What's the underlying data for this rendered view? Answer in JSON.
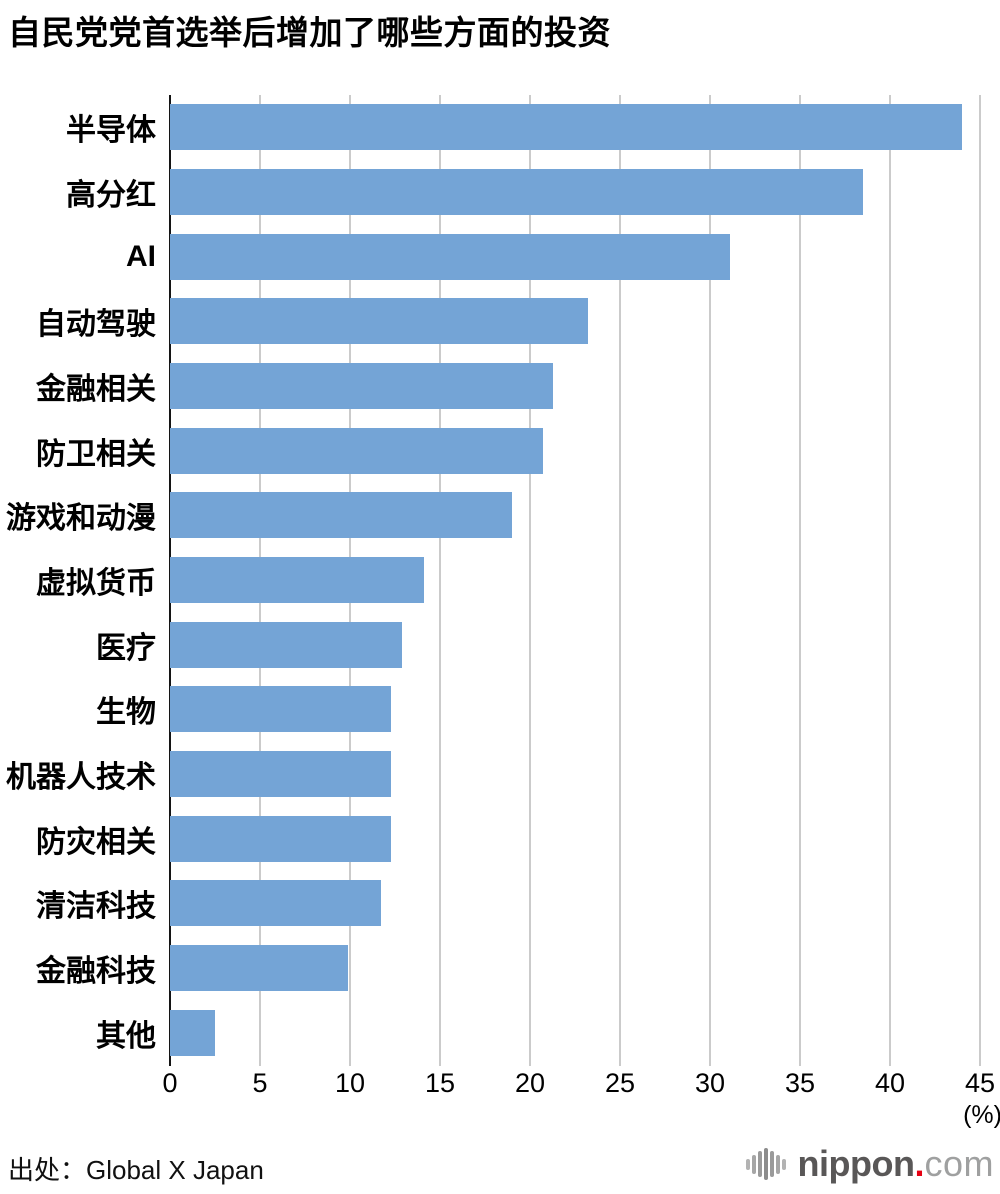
{
  "title": "自民党党首选举后增加了哪些方面的投资",
  "source": "出处：Global X Japan",
  "logo": {
    "name": "nippon.com",
    "text_primary": "nippon",
    "dot": ".",
    "text_secondary": "com"
  },
  "chart_data": {
    "type": "bar",
    "orientation": "horizontal",
    "title": "自民党党首选举后增加了哪些方面的投资",
    "categories": [
      "半导体",
      "高分红",
      "AI",
      "自动驾驶",
      "金融相关",
      "防卫相关",
      "游戏和动漫",
      "虚拟货币",
      "医疗",
      "生物",
      "机器人技术",
      "防灾相关",
      "清洁科技",
      "金融科技",
      "其他"
    ],
    "values": [
      44.0,
      38.5,
      31.1,
      23.2,
      21.3,
      20.7,
      19.0,
      14.1,
      12.9,
      12.3,
      12.3,
      12.3,
      11.7,
      9.9,
      2.5
    ],
    "xlabel": "(%)",
    "ylabel": "",
    "xlim": [
      0,
      45
    ],
    "xticks": [
      0,
      5,
      10,
      15,
      20,
      25,
      30,
      35,
      40,
      45
    ],
    "grid": "vertical",
    "legend": "none",
    "bar_color": "#74a4d6",
    "grid_color": "#cbcbcb",
    "axis_color": "#141414"
  }
}
